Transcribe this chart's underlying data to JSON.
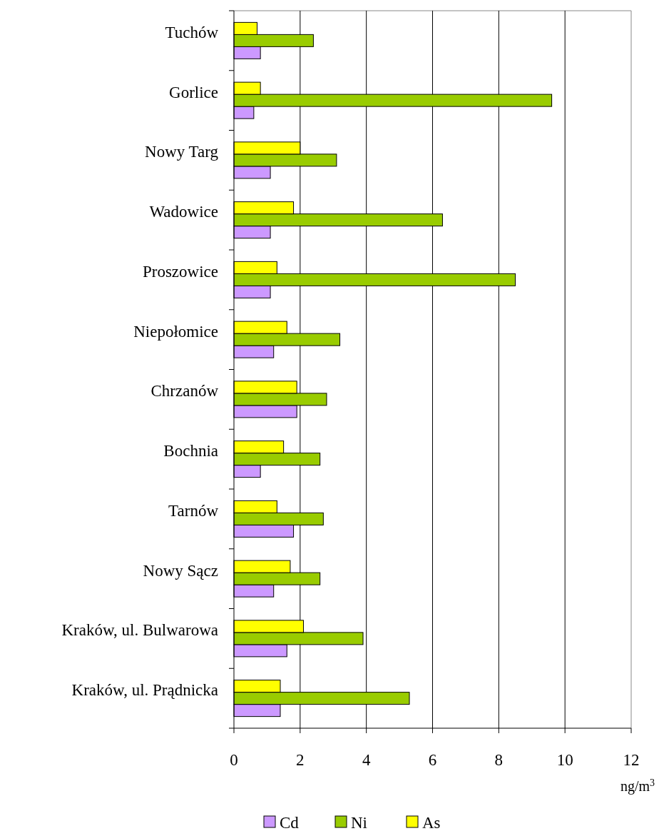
{
  "chart_data": {
    "type": "bar",
    "orientation": "horizontal",
    "xlabel": "ng/m$^{3}$",
    "categories": [
      "Tuchów",
      "Gorlice",
      "Nowy Targ",
      "Wadowice",
      "Proszowice",
      "Niepołomice",
      "Chrzanów",
      "Bochnia",
      "Tarnów",
      "Nowy Sącz",
      "Kraków, ul. Bulwarowa",
      "Kraków, ul. Prądnicka"
    ],
    "series": [
      {
        "name": "Cd",
        "color": "#cc99ff",
        "values": [
          0.8,
          0.6,
          1.1,
          1.1,
          1.1,
          1.2,
          1.9,
          0.8,
          1.8,
          1.2,
          1.6,
          1.4
        ]
      },
      {
        "name": "Ni",
        "color": "#99cc00",
        "values": [
          2.4,
          9.6,
          3.1,
          6.3,
          8.5,
          3.2,
          2.8,
          2.6,
          2.7,
          2.6,
          3.9,
          5.3
        ]
      },
      {
        "name": "As",
        "color": "#ffff00",
        "values": [
          0.7,
          0.8,
          2.0,
          1.8,
          1.3,
          1.6,
          1.9,
          1.5,
          1.3,
          1.7,
          2.1,
          1.4
        ]
      }
    ],
    "xlim": [
      0,
      12
    ],
    "xticks": [
      0,
      2,
      4,
      6,
      8,
      10,
      12
    ],
    "grid": "x",
    "legend": "bottom"
  }
}
